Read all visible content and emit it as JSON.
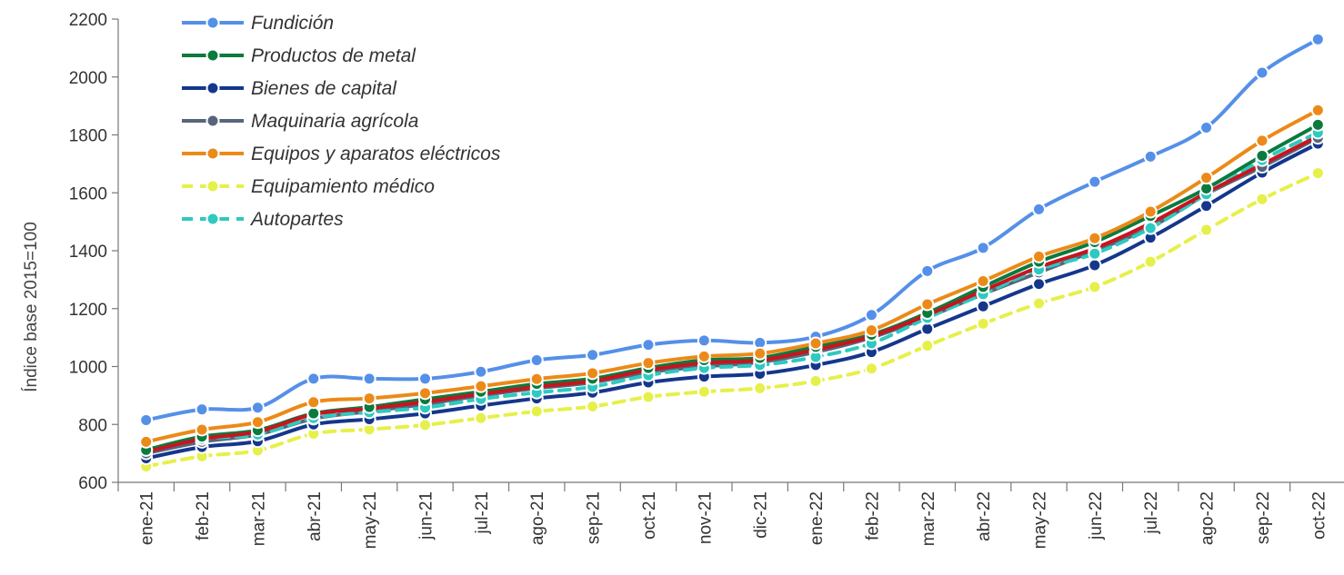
{
  "chart_data": {
    "type": "line",
    "ylabel": "Índice base 2015=100",
    "xlabel": "",
    "ylim": [
      600,
      2200
    ],
    "yticks": [
      600,
      800,
      1000,
      1200,
      1400,
      1600,
      1800,
      2000,
      2200
    ],
    "grid": false,
    "legend_position": "top-left",
    "categories": [
      "ene-21",
      "feb-21",
      "mar-21",
      "abr-21",
      "may-21",
      "jun-21",
      "jul-21",
      "ago-21",
      "sep-21",
      "oct-21",
      "nov-21",
      "dic-21",
      "ene-22",
      "feb-22",
      "mar-22",
      "abr-22",
      "may-22",
      "jun-22",
      "jul-22",
      "ago-22",
      "sep-22",
      "oct-22"
    ],
    "series": [
      {
        "name": "Fundición",
        "color": "#5590e8",
        "style": "solid",
        "markers": true,
        "in_legend": true,
        "values": [
          815,
          852,
          858,
          958,
          958,
          958,
          982,
          1022,
          1040,
          1075,
          1090,
          1082,
          1103,
          1178,
          1330,
          1410,
          1543,
          1638,
          1725,
          1825,
          2015,
          2130
        ]
      },
      {
        "name": "Productos de metal",
        "color": "#0b7a3e",
        "style": "solid",
        "markers": true,
        "in_legend": true,
        "values": [
          712,
          758,
          780,
          838,
          860,
          887,
          913,
          940,
          958,
          995,
          1022,
          1030,
          1068,
          1110,
          1185,
          1275,
          1362,
          1430,
          1520,
          1615,
          1728,
          1835
        ]
      },
      {
        "name": "Bienes de capital",
        "color": "#14378c",
        "style": "solid",
        "markers": true,
        "in_legend": true,
        "values": [
          683,
          722,
          742,
          800,
          818,
          838,
          865,
          890,
          910,
          945,
          965,
          975,
          1005,
          1050,
          1130,
          1208,
          1285,
          1350,
          1445,
          1555,
          1670,
          1770
        ]
      },
      {
        "name": "Maquinaria agrícola",
        "color": "#56657a",
        "style": "solid",
        "markers": true,
        "in_legend": true,
        "values": [
          700,
          740,
          765,
          820,
          845,
          870,
          900,
          925,
          945,
          980,
          1000,
          1015,
          1050,
          1100,
          1170,
          1250,
          1325,
          1400,
          1480,
          1595,
          1690,
          1790
        ]
      },
      {
        "name": "Equipos y aparatos eléctricos",
        "color": "#ec8a18",
        "style": "solid",
        "markers": true,
        "in_legend": true,
        "values": [
          740,
          782,
          808,
          877,
          890,
          908,
          932,
          957,
          977,
          1012,
          1035,
          1045,
          1080,
          1125,
          1215,
          1295,
          1380,
          1443,
          1535,
          1652,
          1780,
          1885
        ]
      },
      {
        "name": "Equipamiento médico",
        "color": "#e6f04a",
        "style": "dashed",
        "markers": true,
        "in_legend": true,
        "values": [
          655,
          690,
          710,
          768,
          783,
          798,
          822,
          845,
          862,
          895,
          913,
          925,
          950,
          993,
          1072,
          1148,
          1218,
          1275,
          1362,
          1472,
          1578,
          1668
        ]
      },
      {
        "name": "Autopartes",
        "color": "#2ec9c0",
        "style": "dashed",
        "markers": true,
        "in_legend": true,
        "values": [
          712,
          750,
          765,
          822,
          842,
          858,
          888,
          910,
          930,
          970,
          995,
          1005,
          1033,
          1080,
          1168,
          1250,
          1335,
          1390,
          1478,
          1595,
          1713,
          1808
        ]
      },
      {
        "name": "",
        "color": "#c8141e",
        "style": "solid",
        "markers": false,
        "in_legend": false,
        "values": [
          705,
          750,
          775,
          835,
          855,
          878,
          905,
          930,
          950,
          988,
          1012,
          1022,
          1058,
          1105,
          1178,
          1262,
          1343,
          1408,
          1495,
          1600,
          1698,
          1795
        ]
      }
    ]
  }
}
